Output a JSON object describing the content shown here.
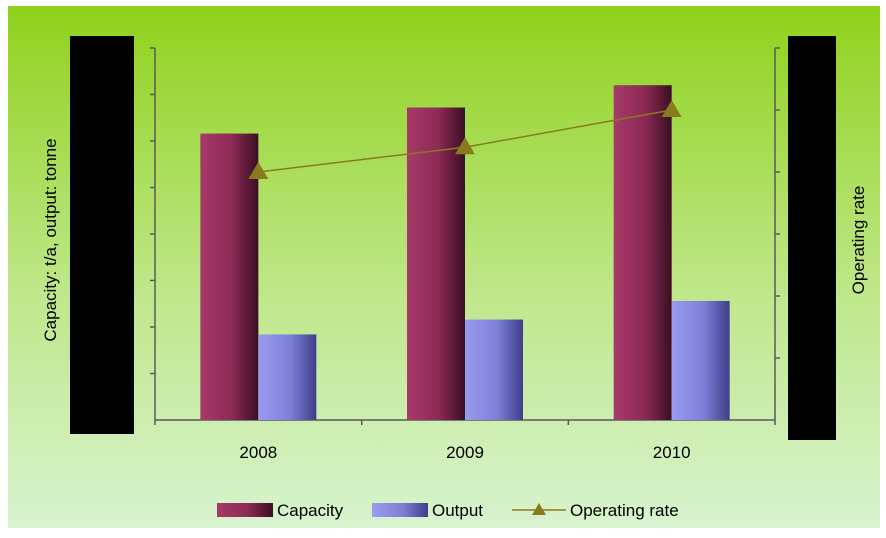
{
  "chart_data": {
    "type": "bar",
    "categories": [
      "2008",
      "2009",
      "2010"
    ],
    "series": [
      {
        "name": "Capacity",
        "kind": "bar",
        "axis": "left",
        "values": [
          0.77,
          0.84,
          0.9
        ],
        "color": "#8b2a55"
      },
      {
        "name": "Output",
        "kind": "bar",
        "axis": "left",
        "values": [
          0.23,
          0.27,
          0.32
        ],
        "color": "#7f7fd6"
      },
      {
        "name": "Operating rate",
        "kind": "line",
        "axis": "right",
        "values": [
          0.4,
          0.44,
          0.5
        ],
        "color": "#8a7a1e"
      }
    ],
    "ylabel_left": "Capacity: t/a, output: tonne",
    "ylabel_right": "Operating rate",
    "ylim_left": [
      0,
      1
    ],
    "ylim_right": [
      0,
      0.6
    ],
    "legend": "bottom",
    "colors": {
      "background_top": "#8fd11b",
      "background_bottom": "#d8f3cf",
      "axis": "#5a5a5a",
      "redaction": "#000000"
    }
  }
}
